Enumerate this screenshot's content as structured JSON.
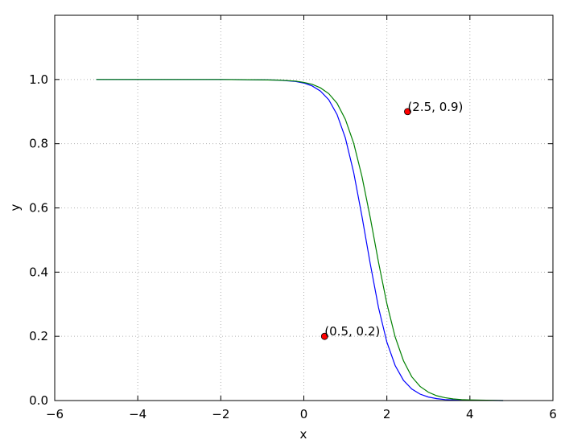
{
  "chart_data": {
    "type": "line",
    "xlabel": "x",
    "ylabel": "y",
    "xlim": [
      -6,
      6
    ],
    "ylim": [
      0,
      1.2
    ],
    "xticks": [
      {
        "value": -6,
        "label": "−6"
      },
      {
        "value": -4,
        "label": "−4"
      },
      {
        "value": -2,
        "label": "−2"
      },
      0,
      2,
      4,
      6
    ],
    "yticks": [
      {
        "value": 0,
        "label": "0.0"
      },
      0.2,
      0.4,
      0.6,
      0.8,
      {
        "value": 1,
        "label": "1.0"
      }
    ],
    "grid": true,
    "x": [
      -5,
      -4,
      -3,
      -2,
      -1,
      -0.6,
      -0.2,
      0,
      0.2,
      0.4,
      0.6,
      0.8,
      1.0,
      1.2,
      1.4,
      1.6,
      1.8,
      2.0,
      2.2,
      2.4,
      2.6,
      2.8,
      3.0,
      3.2,
      3.4,
      3.6,
      3.8,
      4.0,
      4.8
    ],
    "series": [
      {
        "color": "#0000ff",
        "values": [
          1,
          1,
          1,
          1,
          0.999,
          0.998,
          0.994,
          0.989,
          0.98,
          0.964,
          0.937,
          0.891,
          0.818,
          0.711,
          0.574,
          0.426,
          0.289,
          0.182,
          0.109,
          0.063,
          0.036,
          0.02,
          0.011,
          0.006,
          0.003,
          0.002,
          0.001,
          0.001,
          0
        ]
      },
      {
        "color": "#008000",
        "values": [
          1,
          1,
          1,
          1,
          0.999,
          0.998,
          0.995,
          0.991,
          0.985,
          0.974,
          0.956,
          0.926,
          0.876,
          0.802,
          0.698,
          0.57,
          0.43,
          0.302,
          0.198,
          0.124,
          0.074,
          0.044,
          0.026,
          0.015,
          0.009,
          0.005,
          0.003,
          0.002,
          0
        ]
      },
      {
        "type": "scatter",
        "color": "#ff0000",
        "x": [
          0.5,
          2.5
        ],
        "values": [
          0.2,
          0.9
        ],
        "value_labels": [
          "(0.5, 0.2)",
          "(2.5, 0.9)"
        ]
      }
    ]
  }
}
